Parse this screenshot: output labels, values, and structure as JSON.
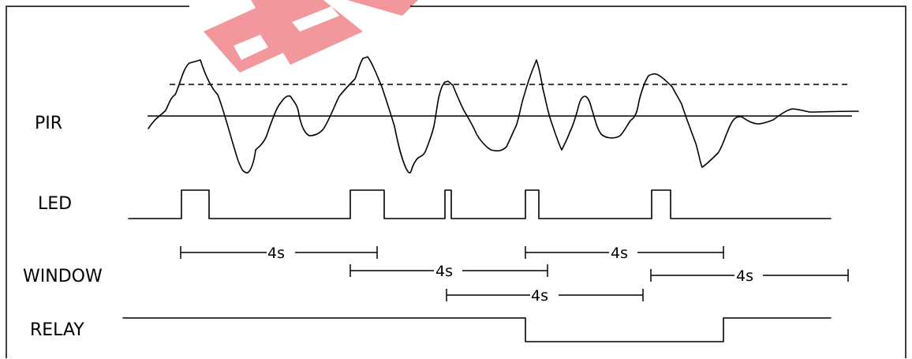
{
  "diagram": {
    "signal_labels": {
      "pir": "PIR",
      "led": "LED",
      "window": "WINDOW",
      "relay": "RELAY"
    },
    "window_durations": [
      "4s",
      "4s",
      "4s",
      "4s",
      "4s"
    ],
    "colors": {
      "lines": "#000000",
      "background": "#ffffff",
      "watermark": "#e8434a"
    },
    "watermark_icon": "red-logo-watermark"
  }
}
